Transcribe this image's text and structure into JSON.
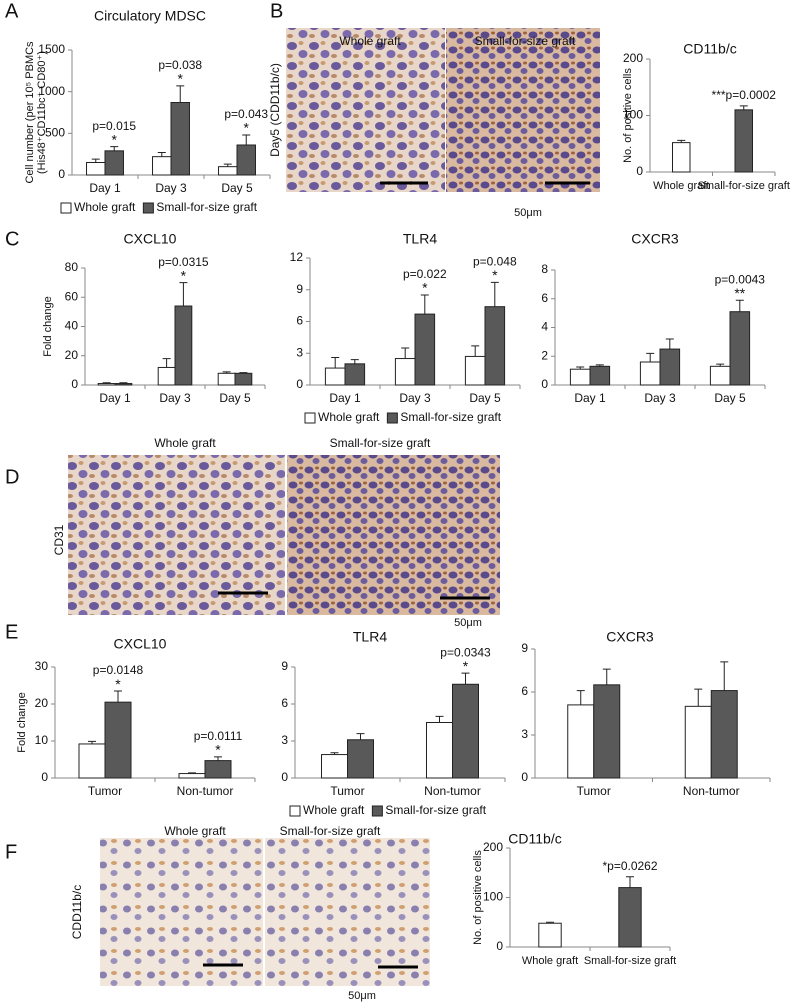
{
  "panel_letters": [
    "A",
    "B",
    "C",
    "D",
    "E",
    "F"
  ],
  "images": [
    {
      "left": "Whole graft",
      "right": "Small-for-size graft",
      "side": "Day5 (CDD11b/c)",
      "scale": "50μm"
    },
    {
      "left": "Whole graft",
      "right": "Small-for-size graft",
      "side": "CD31",
      "scale": "50μm"
    },
    {
      "left": "Whole graft",
      "right": "Small-for-size graft",
      "side": "CDD11b/c",
      "scale": "50μm"
    }
  ],
  "chart_data": [
    {
      "type": "bar",
      "title": "Circulatory MDSC",
      "ylabel": [
        "Cell number (per 10⁵ PBMCs",
        "(His48⁺CD11bc⁺ CD80⁺)"
      ],
      "categories": [
        "Day 1",
        "Day 3",
        "Day 5"
      ],
      "series": [
        {
          "name": "Whole graft",
          "color": "#ffffff",
          "values": [
            150,
            220,
            100
          ],
          "errors": [
            40,
            50,
            30
          ]
        },
        {
          "name": "Small-for-size graft",
          "color": "#595959",
          "values": [
            290,
            870,
            360
          ],
          "errors": [
            50,
            200,
            120
          ]
        }
      ],
      "p_labels": [
        "p=0.015",
        "p=0.038",
        "p=0.043"
      ],
      "stars": [
        "*",
        "*",
        "*"
      ],
      "ylim": [
        0,
        1500
      ],
      "yticks": [
        0,
        500,
        1000,
        1500
      ],
      "legend": "bottom"
    },
    {
      "type": "bar",
      "title": "CD11b/c",
      "ylabel": [
        "No. of positive cells"
      ],
      "categories": [
        "Whole graft",
        "Small-for-size graft"
      ],
      "series": [
        {
          "colors": [
            "#ffffff",
            "#595959"
          ],
          "values": [
            52,
            110
          ],
          "errors": [
            4,
            7
          ]
        }
      ],
      "p_labels": [
        null,
        "***p=0.0002"
      ],
      "ylim": [
        0,
        200
      ],
      "yticks": [
        0,
        100,
        200
      ]
    },
    {
      "type": "bar",
      "title": "CXCL10",
      "ylabel": [
        "Fold change"
      ],
      "categories": [
        "Day 1",
        "Day 3",
        "Day 5"
      ],
      "series": [
        {
          "color": "#ffffff",
          "values": [
            1,
            12,
            8
          ],
          "errors": [
            0.5,
            6,
            1
          ]
        },
        {
          "color": "#595959",
          "values": [
            1,
            54,
            8
          ],
          "errors": [
            0.5,
            16,
            0.5
          ]
        }
      ],
      "p_labels": [
        null,
        "p=0.0315",
        null
      ],
      "stars": [
        null,
        "*",
        null
      ],
      "ylim": [
        0,
        80
      ],
      "yticks": [
        0,
        20,
        40,
        60,
        80
      ]
    },
    {
      "type": "bar",
      "title": "TLR4",
      "categories": [
        "Day 1",
        "Day 3",
        "Day 5"
      ],
      "series": [
        {
          "name": "Whole graft",
          "color": "#ffffff",
          "values": [
            1.6,
            2.5,
            2.7
          ],
          "errors": [
            1.0,
            1.0,
            1.0
          ]
        },
        {
          "name": "Small-for-size graft",
          "color": "#595959",
          "values": [
            2.0,
            6.7,
            7.4
          ],
          "errors": [
            0.4,
            1.8,
            2.3
          ]
        }
      ],
      "p_labels": [
        null,
        "p=0.022",
        "p=0.048"
      ],
      "stars": [
        null,
        "*",
        "*"
      ],
      "ylim": [
        0,
        12
      ],
      "yticks": [
        0,
        3,
        6,
        9,
        12
      ],
      "legend": "bottom"
    },
    {
      "type": "bar",
      "title": "CXCR3",
      "categories": [
        "Day 1",
        "Day 3",
        "Day 5"
      ],
      "series": [
        {
          "color": "#ffffff",
          "values": [
            1.1,
            1.6,
            1.3
          ],
          "errors": [
            0.15,
            0.6,
            0.15
          ]
        },
        {
          "color": "#595959",
          "values": [
            1.3,
            2.5,
            5.1
          ],
          "errors": [
            0.1,
            0.7,
            0.8
          ]
        }
      ],
      "p_labels": [
        null,
        null,
        "p=0.0043"
      ],
      "stars": [
        null,
        null,
        "**"
      ],
      "ylim": [
        0,
        8
      ],
      "yticks": [
        0,
        2,
        4,
        6,
        8
      ]
    },
    {
      "type": "bar",
      "title": "CXCL10",
      "ylabel": [
        "Fold change"
      ],
      "categories": [
        "Tumor",
        "Non-tumor"
      ],
      "series": [
        {
          "color": "#ffffff",
          "values": [
            9.2,
            1.2
          ],
          "errors": [
            0.7,
            0.2
          ]
        },
        {
          "color": "#595959",
          "values": [
            20.5,
            4.7
          ],
          "errors": [
            3,
            1
          ]
        }
      ],
      "p_labels": [
        "p=0.0148",
        "p=0.0111"
      ],
      "stars": [
        "*",
        "*"
      ],
      "ylim": [
        0,
        30
      ],
      "yticks": [
        0,
        10,
        20,
        30
      ]
    },
    {
      "type": "bar",
      "title": "TLR4",
      "categories": [
        "Tumor",
        "Non-tumor"
      ],
      "series": [
        {
          "name": "Whole graft",
          "color": "#ffffff",
          "values": [
            1.9,
            4.5
          ],
          "errors": [
            0.15,
            0.5
          ]
        },
        {
          "name": "Small-for-size graft",
          "color": "#595959",
          "values": [
            3.1,
            7.6
          ],
          "errors": [
            0.5,
            0.9
          ]
        }
      ],
      "p_labels": [
        null,
        "p=0.0343"
      ],
      "stars": [
        null,
        "*"
      ],
      "ylim": [
        0,
        9
      ],
      "yticks": [
        0,
        3,
        6,
        9
      ],
      "legend": "bottom"
    },
    {
      "type": "bar",
      "title": "CXCR3",
      "categories": [
        "Tumor",
        "Non-tumor"
      ],
      "series": [
        {
          "color": "#ffffff",
          "values": [
            5.1,
            5.0
          ],
          "errors": [
            1.0,
            1.2
          ]
        },
        {
          "color": "#595959",
          "values": [
            6.5,
            6.1
          ],
          "errors": [
            1.1,
            2.0
          ]
        }
      ],
      "ylim": [
        0,
        9
      ],
      "yticks": [
        0,
        3,
        6,
        9
      ]
    },
    {
      "type": "bar",
      "title": "CD11b/c",
      "ylabel": [
        "No. of positive cells"
      ],
      "categories": [
        "Whole graft",
        "Small-for-size graft"
      ],
      "series": [
        {
          "colors": [
            "#ffffff",
            "#595959"
          ],
          "values": [
            48,
            120
          ],
          "errors": [
            2,
            22
          ]
        }
      ],
      "p_labels": [
        null,
        "*p=0.0262"
      ],
      "ylim": [
        0,
        200
      ],
      "yticks": [
        0,
        100,
        200
      ]
    }
  ]
}
